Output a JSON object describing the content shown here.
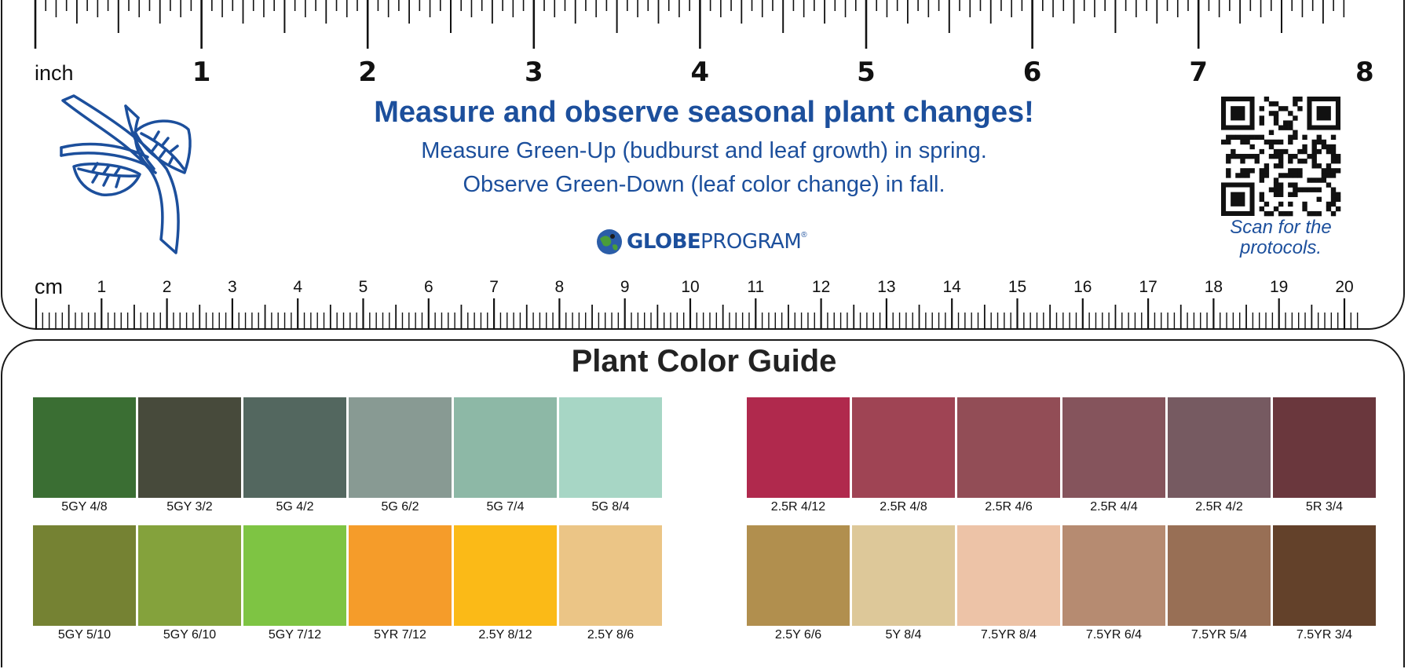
{
  "ruler": {
    "inch_unit": "inch",
    "cm_unit": "cm",
    "inch_numbers": [
      "1",
      "2",
      "3",
      "4",
      "5",
      "6",
      "7",
      "8"
    ],
    "cm_numbers": [
      "1",
      "2",
      "3",
      "4",
      "5",
      "6",
      "7",
      "8",
      "9",
      "10",
      "11",
      "12",
      "13",
      "14",
      "15",
      "16",
      "17",
      "18",
      "19",
      "20"
    ]
  },
  "header": {
    "title": "Measure and observe seasonal plant changes!",
    "line1": "Measure Green-Up (budburst and leaf growth) in spring.",
    "line2": "Observe Green-Down (leaf color change) in fall.",
    "logo_bold": "GLOBE",
    "logo_rest": "PROGRAM",
    "logo_mark": "®",
    "qr_caption_1": "Scan for the",
    "qr_caption_2": "protocols.",
    "qr_icon": "qr-code-icon",
    "plant_icon": "leafy-branch-icon"
  },
  "colors": {
    "accent_blue": "#1c4f9c",
    "title_text": "#222222"
  },
  "guide": {
    "title": "Plant Color Guide",
    "groups": [
      {
        "rows": [
          [
            {
              "label": "5GY 4/8",
              "color": "#3a6e33"
            },
            {
              "label": "5GY 3/2",
              "color": "#474a3b"
            },
            {
              "label": "5G 4/2",
              "color": "#53675f"
            },
            {
              "label": "5G 6/2",
              "color": "#889a93"
            },
            {
              "label": "5G 7/4",
              "color": "#8db8a6"
            },
            {
              "label": "5G 8/4",
              "color": "#a7d6c5"
            }
          ],
          [
            {
              "label": "5GY 5/10",
              "color": "#758233"
            },
            {
              "label": "5GY 6/10",
              "color": "#84a23c"
            },
            {
              "label": "5GY 7/12",
              "color": "#7ec443"
            },
            {
              "label": "5YR 7/12",
              "color": "#f59c2a"
            },
            {
              "label": "2.5Y 8/12",
              "color": "#fbba17"
            },
            {
              "label": "2.5Y 8/6",
              "color": "#ebc586"
            }
          ]
        ]
      },
      {
        "rows": [
          [
            {
              "label": "2.5R 4/12",
              "color": "#b0294d"
            },
            {
              "label": "2.5R 4/8",
              "color": "#9f4454"
            },
            {
              "label": "2.5R 4/6",
              "color": "#924d56"
            },
            {
              "label": "2.5R 4/4",
              "color": "#85545c"
            },
            {
              "label": "2.5R 4/2",
              "color": "#765a61"
            },
            {
              "label": "5R 3/4",
              "color": "#6a373d"
            }
          ],
          [
            {
              "label": "2.5Y 6/6",
              "color": "#b18f4e"
            },
            {
              "label": "5Y 8/4",
              "color": "#ddc899"
            },
            {
              "label": "7.5YR 8/4",
              "color": "#edc3a7"
            },
            {
              "label": "7.5YR 6/4",
              "color": "#b68b71"
            },
            {
              "label": "7.5YR 5/4",
              "color": "#986f55"
            },
            {
              "label": "7.5YR 3/4",
              "color": "#63412a"
            }
          ]
        ]
      }
    ]
  }
}
